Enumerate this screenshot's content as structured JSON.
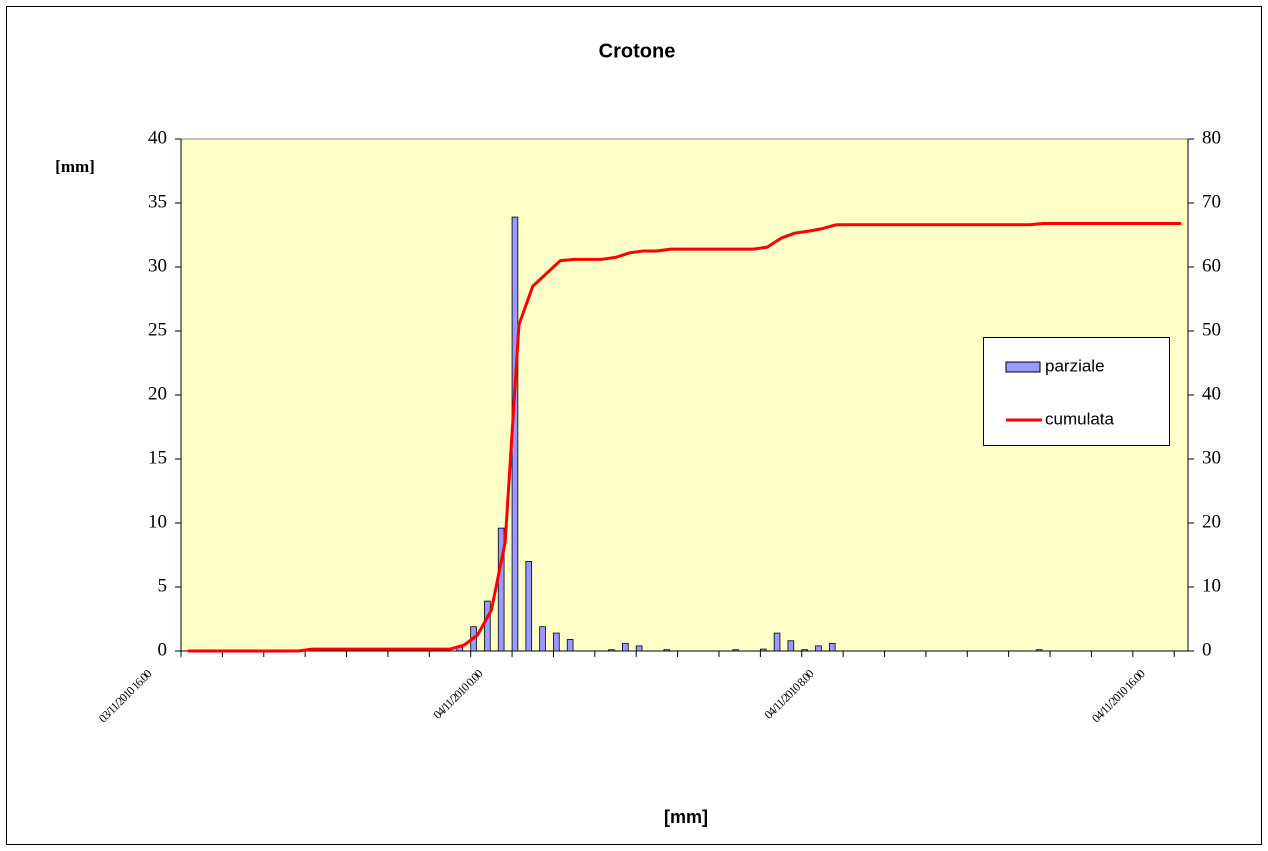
{
  "chart_data": {
    "type": "bar",
    "title": "Crotone",
    "y_label": "[mm]",
    "x_label": "[mm]",
    "legend": "right",
    "plot_background": "#ffffc8",
    "categories": [
      "03/11/2010 16.00",
      null,
      null,
      null,
      null,
      null,
      null,
      null,
      null,
      null,
      null,
      null,
      null,
      null,
      null,
      null,
      null,
      null,
      null,
      null,
      null,
      null,
      null,
      null,
      "04/11/2010 0.00",
      null,
      null,
      null,
      null,
      null,
      null,
      null,
      null,
      null,
      null,
      null,
      null,
      null,
      null,
      null,
      null,
      null,
      null,
      null,
      null,
      null,
      null,
      null,
      "04/11/2010 8.00",
      null,
      null,
      null,
      null,
      null,
      null,
      null,
      null,
      null,
      null,
      null,
      null,
      null,
      null,
      null,
      null,
      null,
      null,
      null,
      null,
      null,
      null,
      null,
      "04/11/2010 16.00"
    ],
    "series": [
      {
        "name": "parziale",
        "type": "bar",
        "color": "#9999ff",
        "values": [
          0,
          0,
          0,
          0,
          0,
          0,
          0,
          0,
          0,
          0,
          0,
          0,
          0,
          0,
          0,
          0,
          0,
          0,
          0,
          0,
          0.3,
          1.9,
          3.9,
          9.6,
          33.9,
          7,
          1.9,
          1.4,
          0.9,
          0,
          0,
          0.1,
          0.6,
          0.4,
          0,
          0.1,
          0,
          0,
          0,
          0,
          0.1,
          0,
          0.15,
          1.4,
          0.8,
          0.1,
          0.4,
          0.6,
          0,
          0,
          0,
          0,
          0,
          0,
          0,
          0,
          0,
          0,
          0,
          0,
          0,
          0,
          0.1,
          0,
          0,
          0,
          0,
          0,
          0,
          0,
          0,
          0,
          0
        ]
      },
      {
        "name": "cumulata",
        "type": "line",
        "axis": "y2",
        "color": "#ff0000",
        "values": [
          0,
          0,
          0,
          0,
          0,
          0,
          0,
          0,
          0,
          0.3,
          0.3,
          0.3,
          0.3,
          0.3,
          0.3,
          0.3,
          0.3,
          0.3,
          0.3,
          0.3,
          0.9,
          2.5,
          6.4,
          17,
          51,
          57,
          59,
          61,
          61.2,
          61.2,
          61.2,
          61.5,
          62.2,
          62.5,
          62.5,
          62.8,
          62.8,
          62.8,
          62.8,
          62.8,
          62.8,
          62.8,
          63.1,
          64.5,
          65.3,
          65.6,
          66,
          66.6,
          66.6,
          66.6,
          66.6,
          66.6,
          66.6,
          66.6,
          66.6,
          66.6,
          66.6,
          66.6,
          66.6,
          66.6,
          66.6,
          66.6,
          66.8,
          66.8,
          66.8,
          66.8,
          66.8,
          66.8,
          66.8,
          66.8,
          66.8,
          66.8,
          66.8
        ]
      }
    ],
    "ylim": [
      0,
      40
    ],
    "yticks": [
      0,
      5,
      10,
      15,
      20,
      25,
      30,
      35,
      40
    ],
    "y2lim": [
      0,
      80
    ],
    "y2ticks": [
      0,
      10,
      20,
      30,
      40,
      50,
      60,
      70,
      80
    ]
  }
}
